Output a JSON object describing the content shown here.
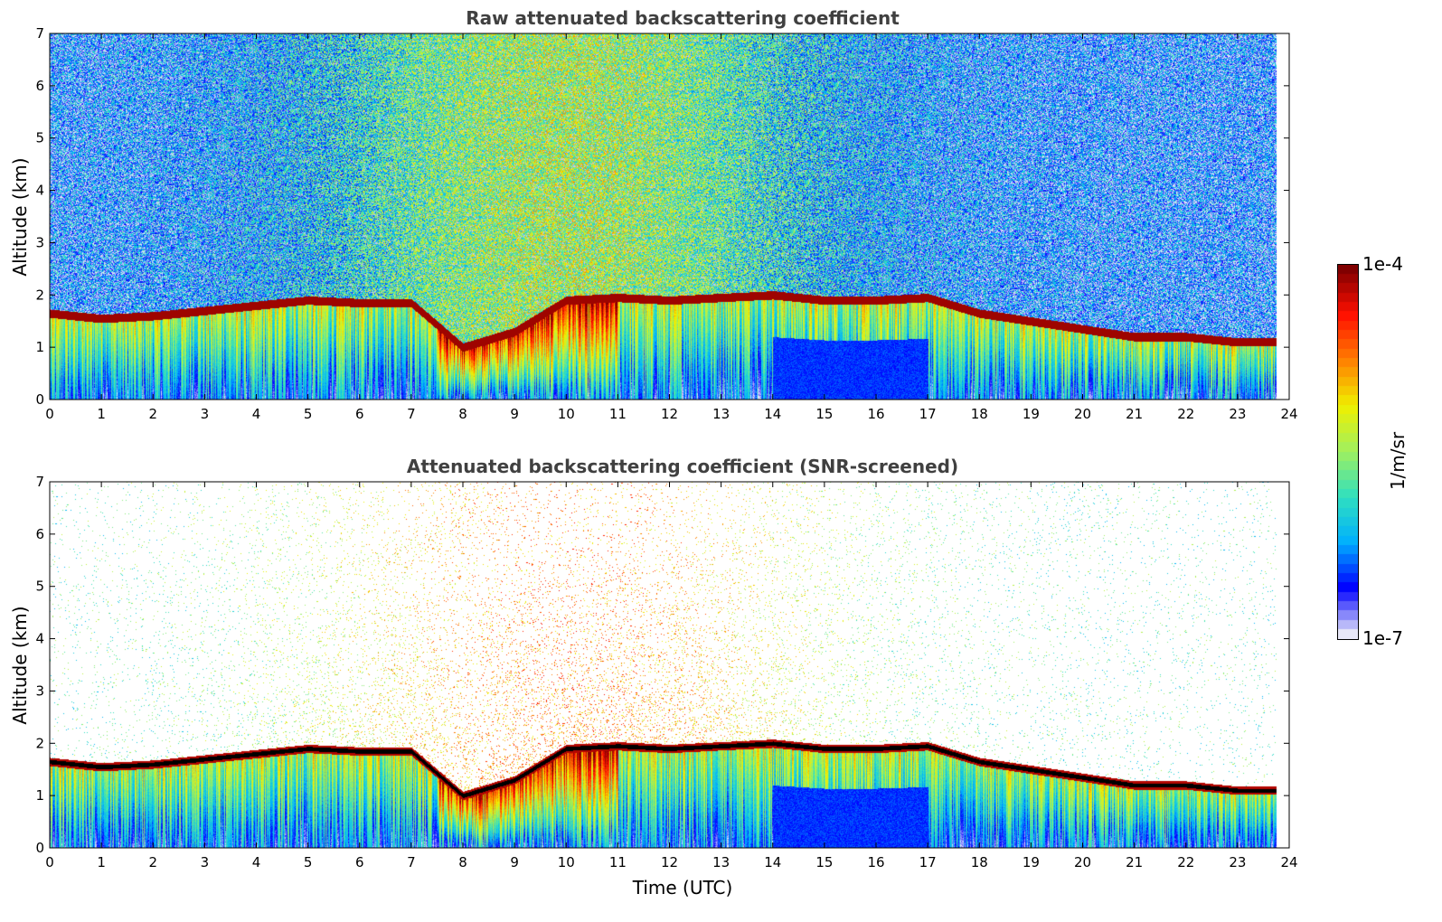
{
  "chart_data": [
    {
      "type": "heatmap",
      "title": "Raw attenuated backscattering coefficient",
      "xlabel": "",
      "ylabel": "Altitude (km)",
      "xlim": [
        0,
        24
      ],
      "ylim": [
        0,
        7
      ],
      "xticks": [
        "0",
        "1",
        "2",
        "3",
        "4",
        "5",
        "6",
        "7",
        "8",
        "9",
        "10",
        "11",
        "12",
        "13",
        "14",
        "15",
        "16",
        "17",
        "18",
        "19",
        "20",
        "21",
        "22",
        "23",
        "24"
      ],
      "yticks": [
        "0",
        "1",
        "2",
        "3",
        "4",
        "5",
        "6",
        "7"
      ],
      "data_end_time": 23.75,
      "screening": "raw",
      "cloud_layer_altitude_km": {
        "time": [
          0,
          1,
          2,
          3,
          4,
          5,
          6,
          7,
          8,
          9,
          10,
          11,
          12,
          13,
          14,
          15,
          16,
          17,
          18,
          19,
          20,
          21,
          22,
          23,
          23.75
        ],
        "altitude": [
          1.65,
          1.55,
          1.6,
          1.7,
          1.8,
          1.9,
          1.85,
          1.85,
          1.0,
          1.3,
          1.9,
          1.95,
          1.9,
          1.95,
          2.0,
          1.9,
          1.9,
          1.95,
          1.65,
          1.5,
          1.35,
          1.2,
          1.2,
          1.1,
          1.1
        ]
      }
    },
    {
      "type": "heatmap",
      "title": "Attenuated backscattering coefficient (SNR-screened)",
      "xlabel": "Time (UTC)",
      "ylabel": "Altitude (km)",
      "xlim": [
        0,
        24
      ],
      "ylim": [
        0,
        7
      ],
      "xticks": [
        "0",
        "1",
        "2",
        "3",
        "4",
        "5",
        "6",
        "7",
        "8",
        "9",
        "10",
        "11",
        "12",
        "13",
        "14",
        "15",
        "16",
        "17",
        "18",
        "19",
        "20",
        "21",
        "22",
        "23",
        "24"
      ],
      "yticks": [
        "0",
        "1",
        "2",
        "3",
        "4",
        "5",
        "6",
        "7"
      ],
      "data_end_time": 23.75,
      "screening": "snr",
      "cloud_layer_altitude_km": {
        "time": [
          0,
          1,
          2,
          3,
          4,
          5,
          6,
          7,
          8,
          9,
          10,
          11,
          12,
          13,
          14,
          15,
          16,
          17,
          18,
          19,
          20,
          21,
          22,
          23,
          23.75
        ],
        "altitude": [
          1.65,
          1.55,
          1.6,
          1.7,
          1.8,
          1.9,
          1.85,
          1.85,
          1.0,
          1.3,
          1.9,
          1.95,
          1.9,
          1.95,
          2.0,
          1.9,
          1.9,
          1.95,
          1.65,
          1.5,
          1.35,
          1.2,
          1.2,
          1.1,
          1.1
        ]
      }
    }
  ],
  "colorbar": {
    "max_label": "1e-4",
    "min_label": "1e-7",
    "unit": "1/m/sr",
    "scale": "log",
    "colormap": "jet",
    "colors": [
      "#e8e8f8",
      "#0000ff",
      "#00b0ff",
      "#30e0c0",
      "#a0f060",
      "#f0f000",
      "#ff8000",
      "#ff1000",
      "#800000"
    ]
  }
}
